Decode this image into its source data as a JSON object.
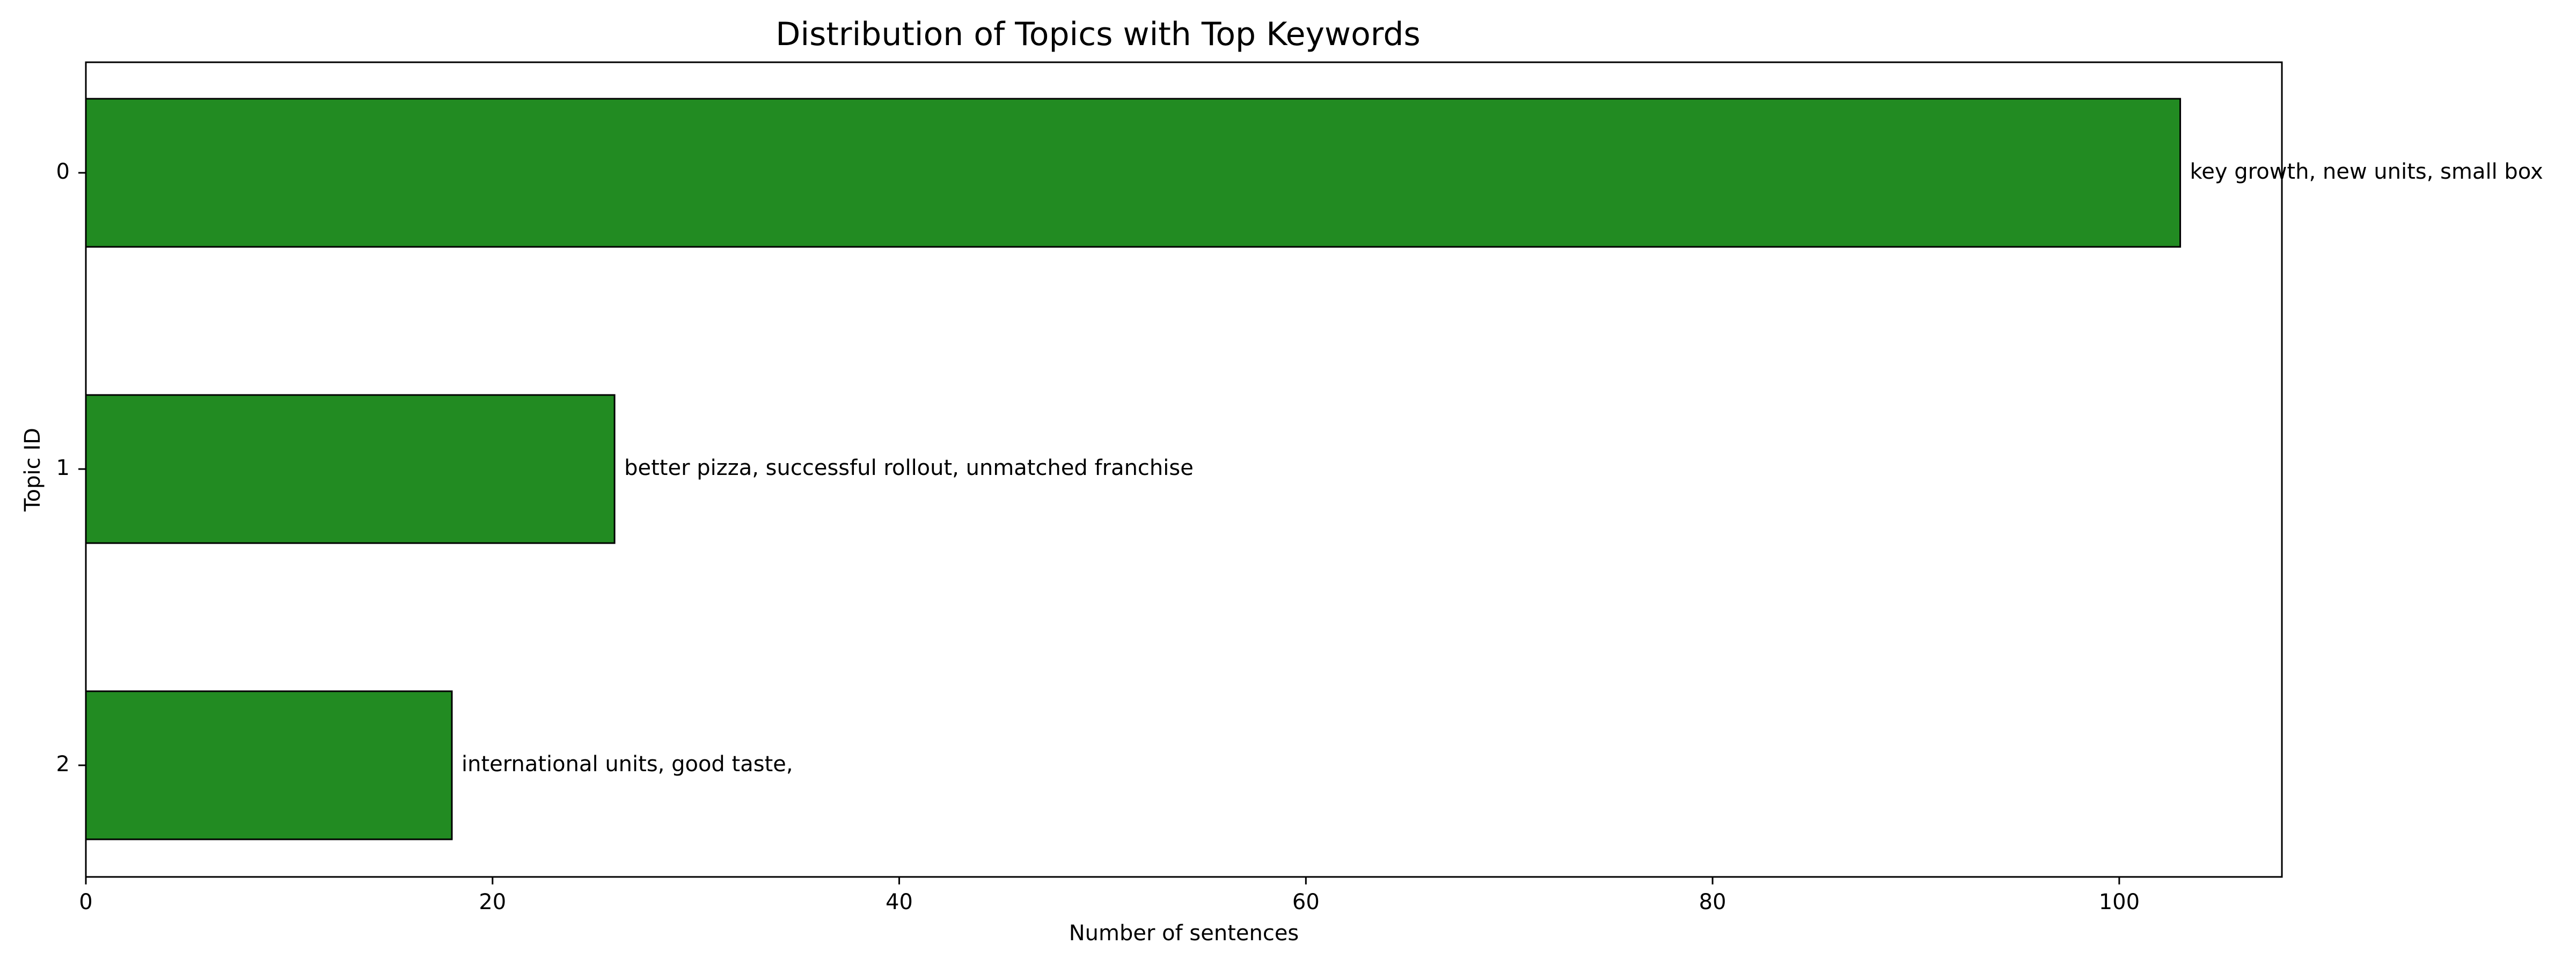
{
  "chart_data": {
    "type": "bar",
    "orientation": "horizontal",
    "title": "Distribution of Topics with Top Keywords",
    "xlabel": "Number of sentences",
    "ylabel": "Topic ID",
    "categories": [
      "0",
      "1",
      "2"
    ],
    "values": [
      103,
      26,
      18
    ],
    "bar_labels": [
      "key growth, new units, small box",
      "better pizza, successful rollout, unmatched franchise",
      "international units, good taste,"
    ],
    "xlim": [
      0,
      108
    ],
    "xticks": [
      0,
      20,
      40,
      60,
      80,
      100
    ],
    "grid": false,
    "bar_color": "#228b22",
    "edge_color": "#000000"
  }
}
